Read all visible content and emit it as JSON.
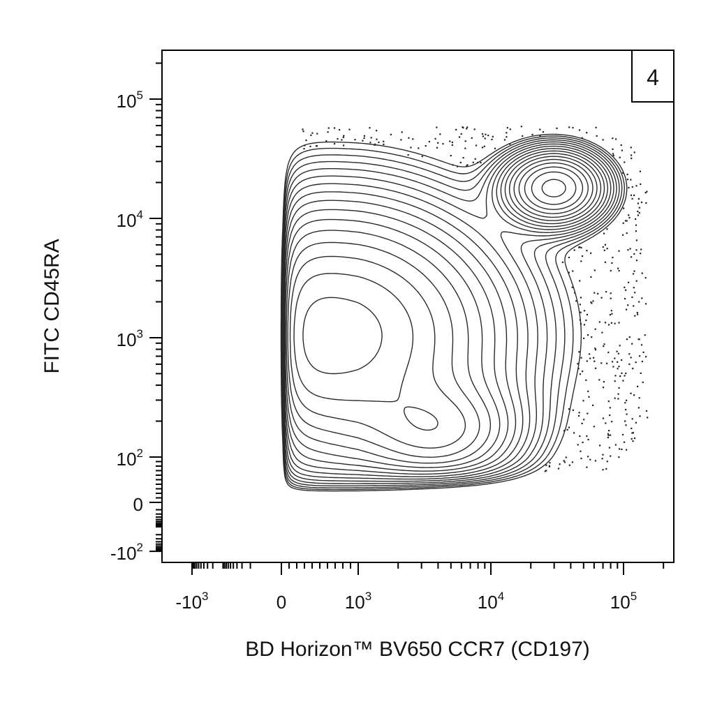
{
  "chart_data": {
    "type": "contour",
    "title": "",
    "panel_number": "4",
    "xlabel": "BD Horizon™ BV650 CCR7 (CD197)",
    "ylabel": "FITC CD45RA",
    "x_scale": "biexponential",
    "y_scale": "biexponential",
    "xlim": [
      -2000,
      250000
    ],
    "ylim": [
      -200,
      250000
    ],
    "grid": false,
    "legend": "none",
    "x_ticks": [
      {
        "base": "-10",
        "exp": "3",
        "text": "",
        "value": -1000
      },
      {
        "base": "",
        "exp": "",
        "text": "0",
        "value": 0
      },
      {
        "base": "10",
        "exp": "3",
        "text": "",
        "value": 1000
      },
      {
        "base": "10",
        "exp": "4",
        "text": "",
        "value": 10000
      },
      {
        "base": "10",
        "exp": "5",
        "text": "",
        "value": 100000
      }
    ],
    "y_ticks": [
      {
        "base": "10",
        "exp": "5",
        "text": "",
        "value": 100000
      },
      {
        "base": "10",
        "exp": "4",
        "text": "",
        "value": 10000
      },
      {
        "base": "10",
        "exp": "3",
        "text": "",
        "value": 1000
      },
      {
        "base": "10",
        "exp": "2",
        "text": "",
        "value": 100
      },
      {
        "base": "",
        "exp": "",
        "text": "0",
        "value": 0
      },
      {
        "base": "-10",
        "exp": "2",
        "text": "",
        "value": -100
      }
    ],
    "populations": [
      {
        "name": "",
        "center": [
          650,
          1050
        ],
        "peak_rel": 1.0,
        "spread_x_decades": 0.75,
        "spread_y_decades": 0.65
      },
      {
        "name": "",
        "center": [
          4300,
          160
        ],
        "peak_rel": 0.45,
        "spread_x_decades": 0.35,
        "spread_y_decades": 0.25
      },
      {
        "name": "",
        "center": [
          30000,
          18000
        ],
        "peak_rel": 0.95,
        "spread_x_decades": 0.22,
        "spread_y_decades": 0.18
      }
    ],
    "scatter_region": {
      "x_range": [
        200,
        150000
      ],
      "y_range": [
        70,
        60000
      ],
      "point_count": 400
    }
  }
}
